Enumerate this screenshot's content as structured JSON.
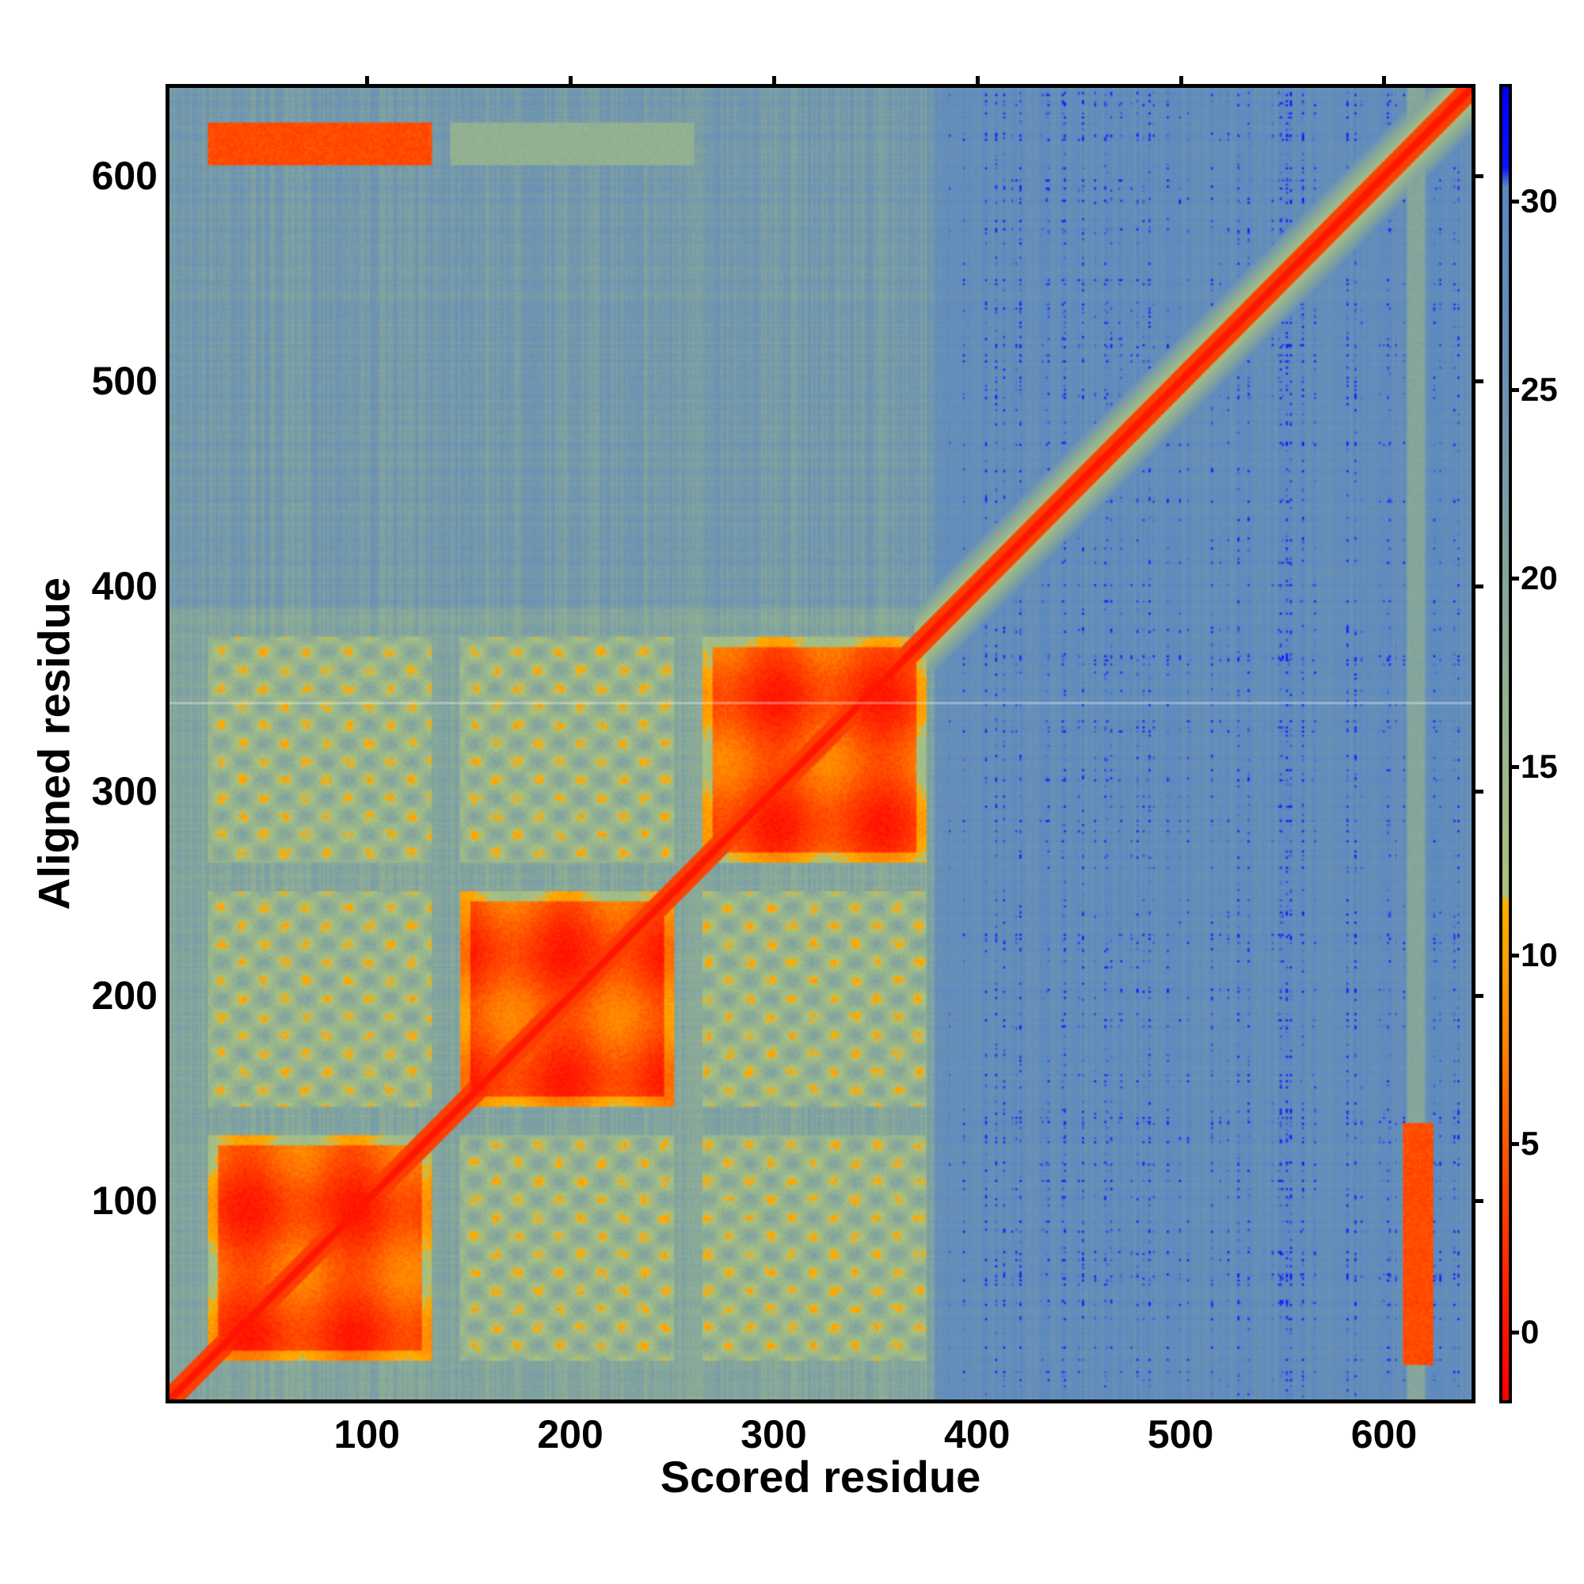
{
  "chart_data": {
    "type": "heatmap",
    "title": "",
    "xlabel": "Scored residue",
    "ylabel": "Aligned residue",
    "xlim": [
      1,
      645
    ],
    "ylim": [
      1,
      645
    ],
    "xticks": [
      100,
      200,
      300,
      400,
      500,
      600
    ],
    "yticks": [
      100,
      200,
      300,
      400,
      500,
      600
    ],
    "colorbar": {
      "ticks": [
        0,
        5,
        10,
        15,
        20,
        25,
        30
      ],
      "range": [
        -1.9,
        33.1
      ],
      "stops": [
        {
          "value": -1.9,
          "color": "#ff0000"
        },
        {
          "value": 1,
          "color": "#ff2200"
        },
        {
          "value": 4,
          "color": "#ff4a00"
        },
        {
          "value": 7,
          "color": "#ff7a00"
        },
        {
          "value": 10,
          "color": "#ffa200"
        },
        {
          "value": 11.5,
          "color": "#ffb000"
        },
        {
          "value": 12,
          "color": "#a9c27f"
        },
        {
          "value": 16,
          "color": "#98b48e"
        },
        {
          "value": 20,
          "color": "#85a69c"
        },
        {
          "value": 25,
          "color": "#6c93b3"
        },
        {
          "value": 30.5,
          "color": "#5a88c2"
        },
        {
          "value": 31,
          "color": "#0a14ff"
        },
        {
          "value": 33.1,
          "color": "#0000ff"
        }
      ]
    },
    "n_residues": 645,
    "background_value_left": 23,
    "background_value_right": 28,
    "diagonal_value": 0,
    "domains": [
      [
        20,
        130
      ],
      [
        145,
        250
      ],
      [
        265,
        375
      ]
    ],
    "intra_domain_value": 3,
    "inter_domain_value": 14,
    "extra_contacts": [
      {
        "x": [
          20,
          130
        ],
        "y": [
          608,
          628
        ],
        "value": 3
      },
      {
        "x": [
          140,
          260
        ],
        "y": [
          608,
          628
        ],
        "value": 16
      },
      {
        "x": [
          612,
          626
        ],
        "y": [
          18,
          136
        ],
        "value": 3
      },
      {
        "x": [
          614,
          622
        ],
        "y": [
          1,
          645
        ],
        "value": 19
      }
    ],
    "gap_row": 343
  }
}
